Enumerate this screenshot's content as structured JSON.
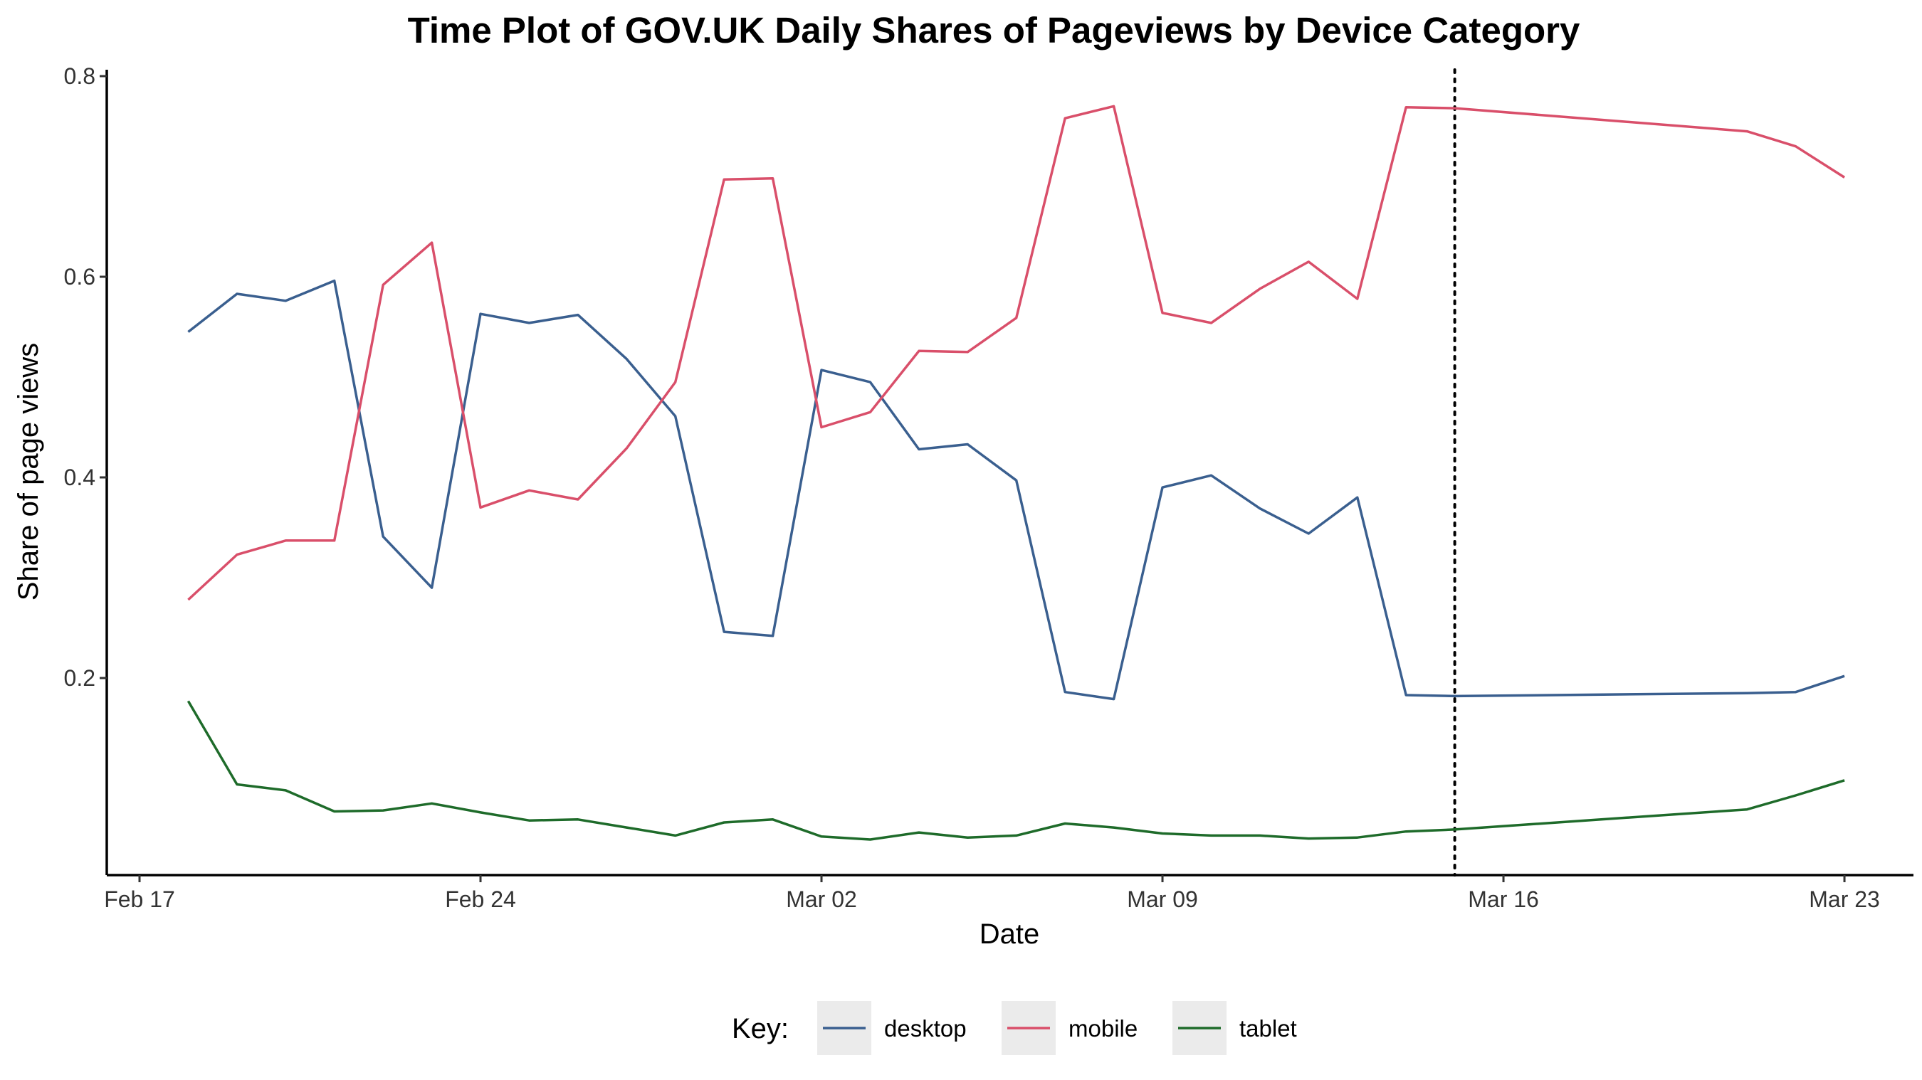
{
  "chart_data": {
    "type": "line",
    "title": "Time Plot of GOV.UK Daily Shares of Pageviews by Device Category",
    "xlabel": "Date",
    "ylabel": "Share of page views",
    "x_ticks": [
      "Feb 17",
      "Feb 24",
      "Mar 02",
      "Mar 09",
      "Mar 16",
      "Mar 23"
    ],
    "y_ticks": [
      "0.2",
      "0.4",
      "0.6",
      "0.8"
    ],
    "ylim": [
      0.0,
      0.8
    ],
    "grid": false,
    "legend_title": "Key:",
    "legend_position": "bottom",
    "vline": {
      "date": "Mar 15",
      "style": "dotted",
      "color": "#000000"
    },
    "x": [
      "Feb 18",
      "Feb 19",
      "Feb 20",
      "Feb 21",
      "Feb 22",
      "Feb 23",
      "Feb 24",
      "Feb 25",
      "Feb 26",
      "Feb 27",
      "Feb 28",
      "Feb 29",
      "Mar 01",
      "Mar 02",
      "Mar 03",
      "Mar 04",
      "Mar 05",
      "Mar 06",
      "Mar 07",
      "Mar 08",
      "Mar 09",
      "Mar 10",
      "Mar 11",
      "Mar 12",
      "Mar 13",
      "Mar 14",
      "Mar 15",
      "Mar 21",
      "Mar 22",
      "Mar 23"
    ],
    "series": [
      {
        "name": "desktop",
        "color": "#3a5f8f",
        "values": [
          0.545,
          0.583,
          0.576,
          0.596,
          0.341,
          0.29,
          0.563,
          0.554,
          0.562,
          0.518,
          0.461,
          0.246,
          0.242,
          0.507,
          0.495,
          0.428,
          0.433,
          0.397,
          0.186,
          0.179,
          0.39,
          0.402,
          0.369,
          0.344,
          0.38,
          0.183,
          0.182,
          0.185,
          0.186,
          0.202
        ]
      },
      {
        "name": "mobile",
        "color": "#d94f6a",
        "values": [
          0.278,
          0.323,
          0.337,
          0.337,
          0.592,
          0.634,
          0.37,
          0.387,
          0.378,
          0.429,
          0.495,
          0.697,
          0.698,
          0.45,
          0.465,
          0.526,
          0.525,
          0.559,
          0.758,
          0.77,
          0.564,
          0.554,
          0.588,
          0.615,
          0.578,
          0.769,
          0.768,
          0.745,
          0.73,
          0.699
        ]
      },
      {
        "name": "tablet",
        "color": "#1e6b2a",
        "values": [
          0.177,
          0.094,
          0.088,
          0.067,
          0.068,
          0.075,
          0.066,
          0.058,
          0.059,
          0.051,
          0.043,
          0.056,
          0.059,
          0.042,
          0.039,
          0.046,
          0.041,
          0.043,
          0.055,
          0.051,
          0.045,
          0.043,
          0.043,
          0.04,
          0.041,
          0.047,
          0.049,
          0.069,
          0.083,
          0.098
        ]
      }
    ]
  }
}
